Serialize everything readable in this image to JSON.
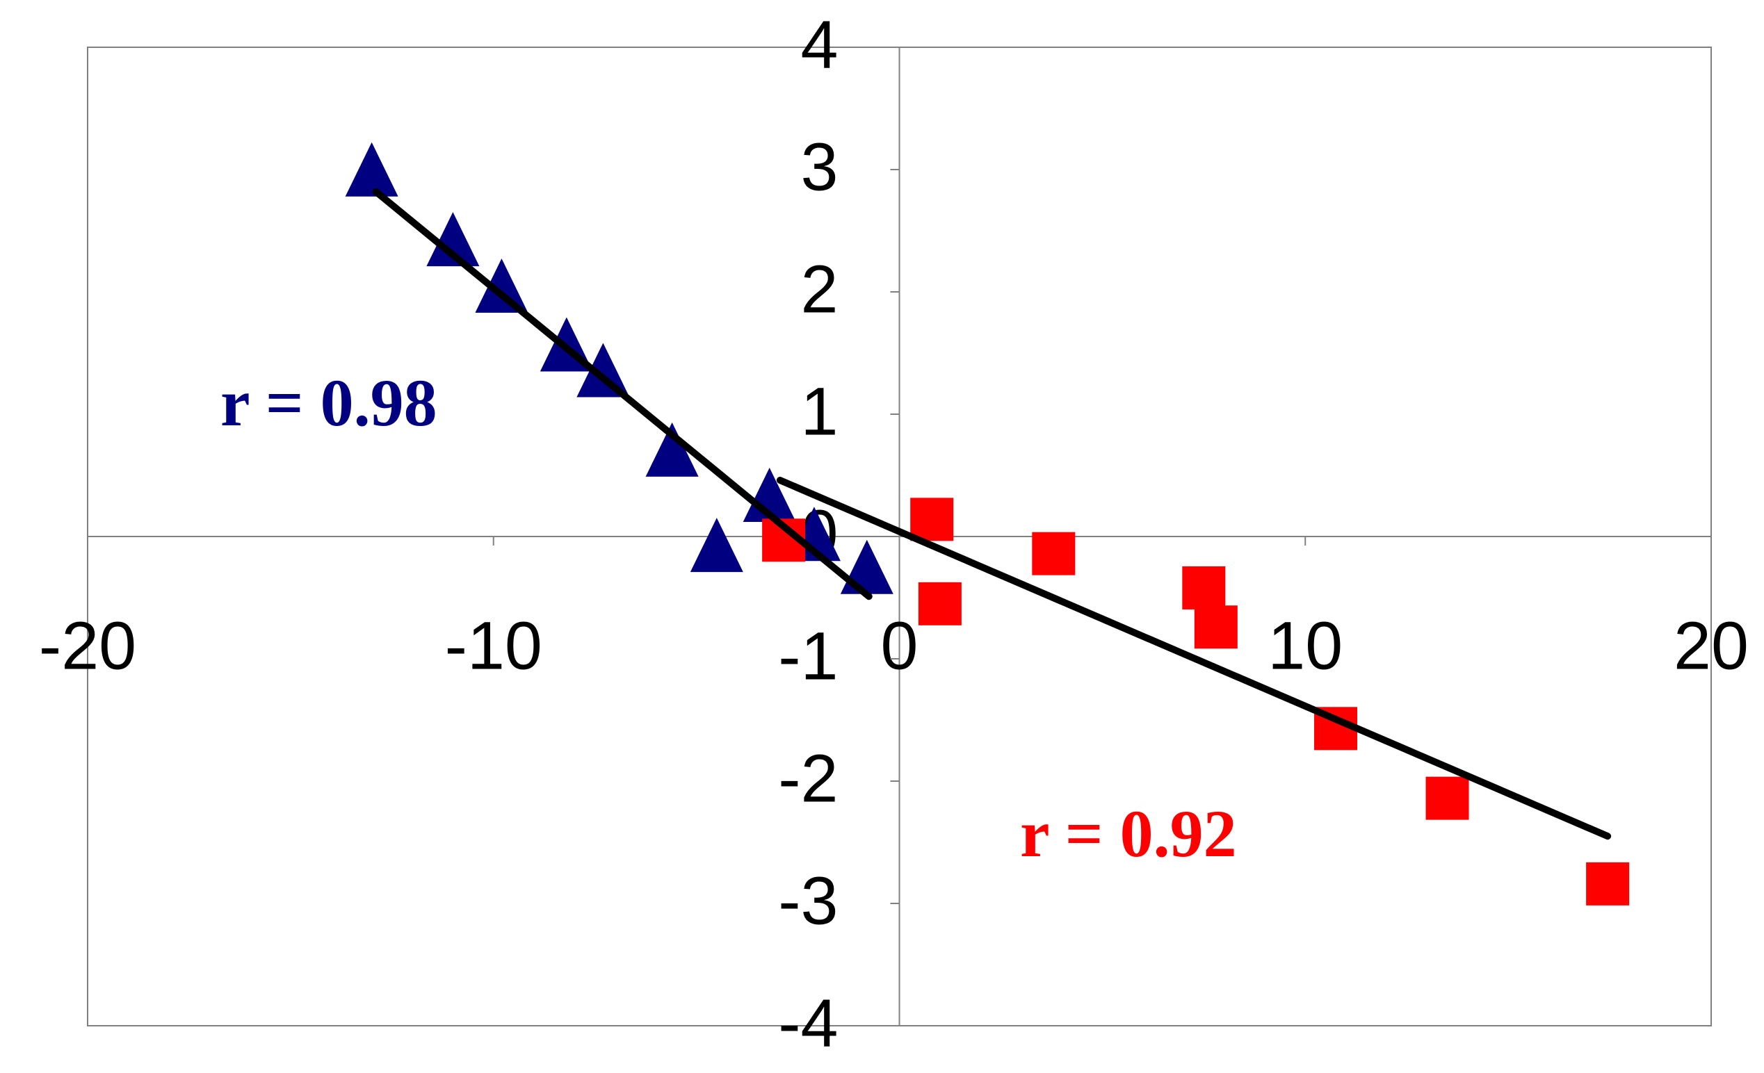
{
  "chart_data": {
    "type": "scatter",
    "xlim": [
      -20,
      20
    ],
    "ylim": [
      -4,
      4
    ],
    "xticks": [
      -20,
      -10,
      0,
      10,
      20
    ],
    "yticks": [
      -4,
      -3,
      -2,
      -1,
      0,
      1,
      2,
      3,
      4
    ],
    "series": [
      {
        "color": "#000080",
        "marker": "triangle",
        "x": [
          -13.0,
          -11.0,
          -9.8,
          -8.2,
          -7.3,
          -5.6,
          -3.2,
          -4.5,
          -2.1,
          -0.8
        ],
        "y": [
          2.95,
          2.38,
          2.0,
          1.52,
          1.31,
          0.66,
          0.29,
          -0.12,
          -0.03,
          -0.3
        ]
      },
      {
        "color": "#ff0000",
        "marker": "square",
        "x": [
          -2.85,
          0.8,
          1.0,
          3.8,
          7.5,
          7.8,
          10.75,
          13.5,
          17.45
        ],
        "y": [
          -0.03,
          0.14,
          -0.55,
          -0.14,
          -0.42,
          -0.74,
          -1.57,
          -2.14,
          -2.84
        ]
      }
    ],
    "trendlines": [
      {
        "color": "#000000",
        "x": [
          -12.9,
          -0.75
        ],
        "y": [
          2.82,
          -0.49
        ]
      },
      {
        "color": "#000000",
        "x": [
          -2.94,
          17.45
        ],
        "y": [
          0.46,
          -2.45
        ]
      }
    ],
    "annotations": [
      {
        "text": "r = 0.98",
        "color": "#000080"
      },
      {
        "text": "r = 0.92",
        "color": "#ff0000"
      }
    ]
  }
}
